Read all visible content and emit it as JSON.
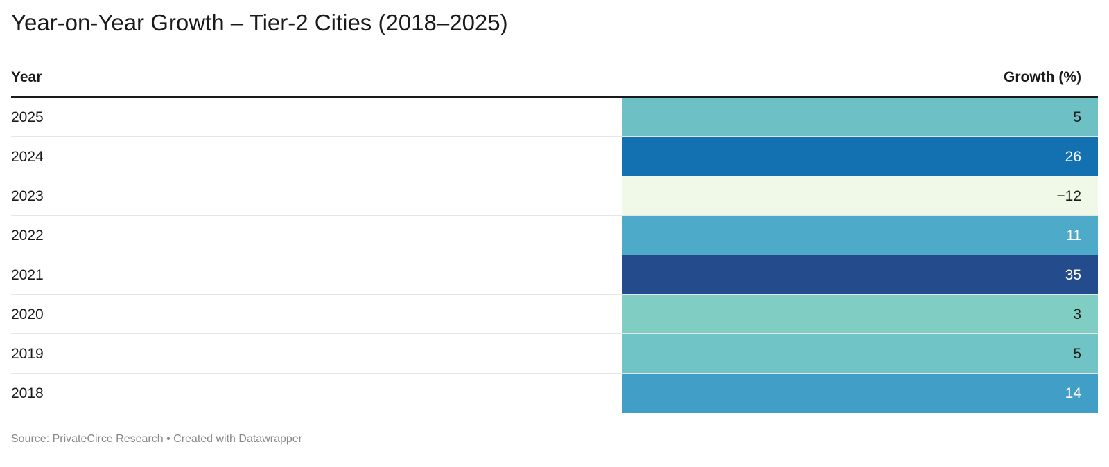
{
  "title": "Year-on-Year Growth – Tier-2 Cities (2018–2025)",
  "footer": "Source: PrivateCirce Research • Created with Datawrapper",
  "chart_data": {
    "type": "table",
    "title": "Year-on-Year Growth – Tier-2 Cities (2018–2025)",
    "columns": [
      "Year",
      "Growth (%)"
    ],
    "rows": [
      {
        "year": "2025",
        "growth": 5,
        "growth_label": "5",
        "color": "#6dc1c5",
        "text_color": "#1a1a1a"
      },
      {
        "year": "2024",
        "growth": 26,
        "growth_label": "26",
        "color": "#1371b1",
        "text_color": "#ffffff"
      },
      {
        "year": "2023",
        "growth": -12,
        "growth_label": "−12",
        "color": "#f0f8e8",
        "text_color": "#1a1a1a"
      },
      {
        "year": "2022",
        "growth": 11,
        "growth_label": "11",
        "color": "#4eaac9",
        "text_color": "#ffffff"
      },
      {
        "year": "2021",
        "growth": 35,
        "growth_label": "35",
        "color": "#244b8b",
        "text_color": "#ffffff"
      },
      {
        "year": "2020",
        "growth": 3,
        "growth_label": "3",
        "color": "#80cdc3",
        "text_color": "#1a1a1a"
      },
      {
        "year": "2019",
        "growth": 5,
        "growth_label": "5",
        "color": "#71c4c6",
        "text_color": "#1a1a1a"
      },
      {
        "year": "2018",
        "growth": 14,
        "growth_label": "14",
        "color": "#419ec6",
        "text_color": "#ffffff"
      }
    ],
    "source": "Source: PrivateCirce Research • Created with Datawrapper"
  }
}
